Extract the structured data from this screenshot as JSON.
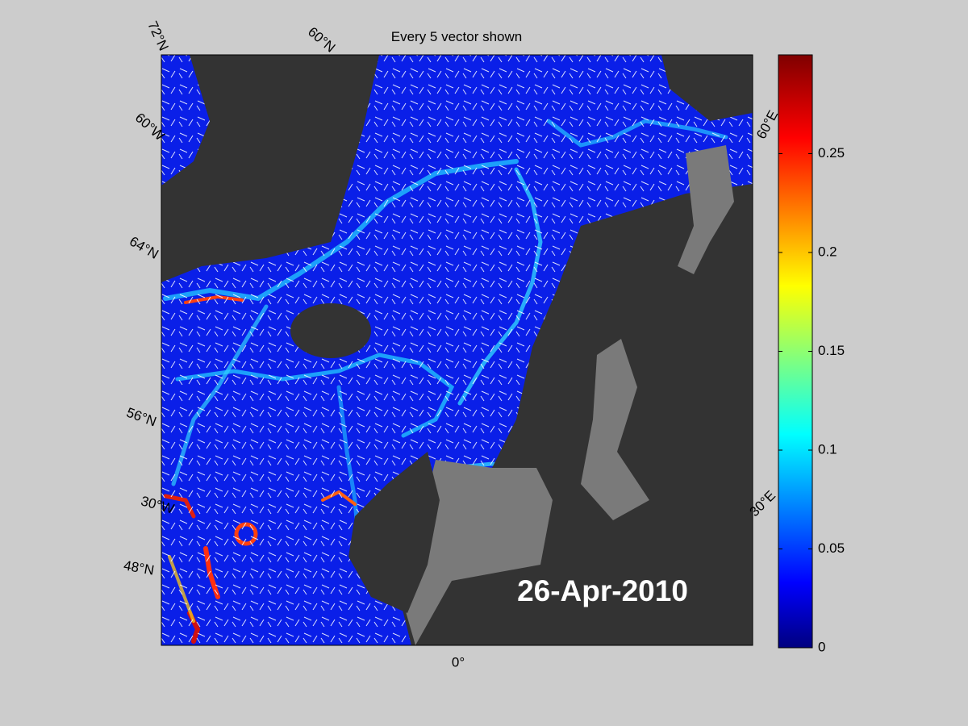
{
  "title": "Every 5 vector shown",
  "date": "26-Apr-2010",
  "graticule_labels": [
    "72°N",
    "60°N",
    "60°W",
    "64°N",
    "56°N",
    "30°W",
    "48°N",
    "0°",
    "60°E",
    "30°E"
  ],
  "colorbar": {
    "lim": [
      0,
      0.3
    ],
    "ticks": [
      0,
      0.05,
      0.1,
      0.15,
      0.2,
      0.25
    ]
  }
}
